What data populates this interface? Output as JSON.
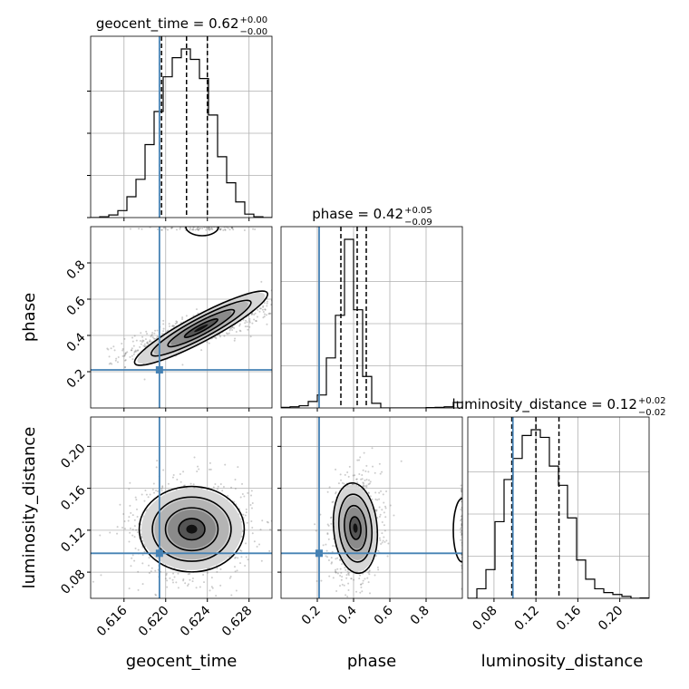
{
  "chart_data": {
    "type": "corner",
    "parameters": [
      "geocent_time",
      "phase",
      "luminosity_distance"
    ],
    "truths": [
      0.6194,
      0.21,
      0.098
    ],
    "truth_color": "#4682b4",
    "axes": {
      "geocent_time": {
        "range": [
          0.6128,
          0.6302
        ],
        "ticks": [
          0.616,
          0.62,
          0.624,
          0.628
        ],
        "tick_labels": [
          "0.616",
          "0.620",
          "0.624",
          "0.628"
        ]
      },
      "phase": {
        "range": [
          0.0,
          1.0
        ],
        "ticks": [
          0.2,
          0.4,
          0.6,
          0.8
        ],
        "tick_labels": [
          "0.2",
          "0.4",
          "0.6",
          "0.8"
        ]
      },
      "luminosity_distance": {
        "range": [
          0.055,
          0.228
        ],
        "ticks": [
          0.08,
          0.12,
          0.16,
          0.2
        ],
        "tick_labels": [
          "0.08",
          "0.12",
          "0.16",
          "0.20"
        ]
      }
    },
    "titles": [
      {
        "main": "geocent_time = 0.62",
        "sup": "+0.00",
        "sub": "−0.00"
      },
      {
        "main": "phase = 0.42",
        "sup": "+0.05",
        "sub": "−0.09"
      },
      {
        "main": "luminosity_distance = 0.12",
        "sup": "+0.02",
        "sub": "−0.02"
      }
    ],
    "quantiles": {
      "geocent_time": [
        0.6196,
        0.622,
        0.624
      ],
      "phase": [
        0.33,
        0.42,
        0.47
      ],
      "luminosity_distance": [
        0.097,
        0.12,
        0.142
      ]
    },
    "histograms": {
      "geocent_time": {
        "edges_start": 0.6128,
        "bin_width": 0.00087,
        "counts": [
          0,
          0.5,
          1.5,
          4,
          12,
          22,
          42,
          61,
          81,
          92,
          97,
          91,
          80,
          59,
          35,
          20,
          9,
          2,
          0.5,
          0
        ]
      },
      "phase": {
        "edges_start": 0.0,
        "bin_width": 0.05,
        "counts": [
          0.3,
          0.6,
          1.2,
          3.5,
          7,
          27,
          50,
          91,
          53,
          17,
          2.5,
          0,
          0,
          0,
          0,
          0,
          0.2,
          0.3,
          0.6,
          3
        ]
      },
      "luminosity_distance": {
        "edges_start": 0.055,
        "bin_width": 0.00865,
        "counts": [
          0,
          5,
          15,
          40,
          62,
          73,
          85,
          88,
          84,
          69,
          59,
          42,
          20,
          10,
          5,
          3,
          2,
          1,
          0,
          0.2
        ]
      }
    },
    "pairs": [
      {
        "x": "geocent_time",
        "y": "phase",
        "center": [
          0.6234,
          0.44
        ],
        "spread": [
          0.0025,
          0.055
        ],
        "rho": 0.82
      },
      {
        "x": "geocent_time",
        "y": "luminosity_distance",
        "center": [
          0.6225,
          0.121
        ],
        "spread": [
          0.0021,
          0.017
        ],
        "rho": 0.0
      },
      {
        "x": "phase",
        "y": "luminosity_distance",
        "center": [
          0.41,
          0.122
        ],
        "spread": [
          0.05,
          0.018
        ],
        "rho": 0.1
      }
    ]
  }
}
